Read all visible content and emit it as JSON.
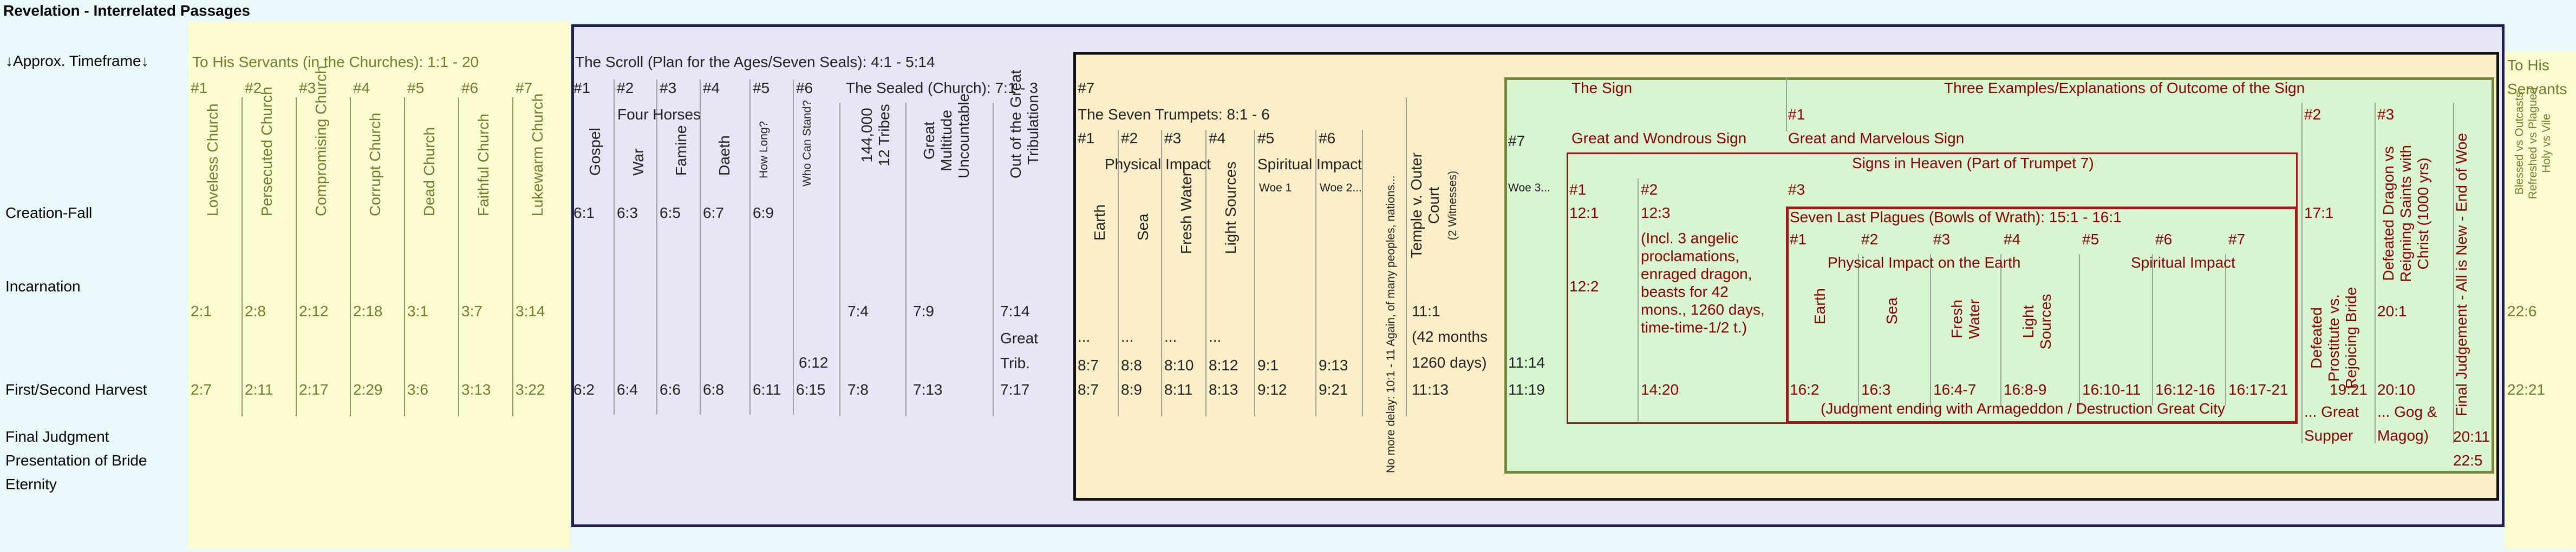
{
  "title": "Revelation - Interrelated Passages",
  "timeframe": {
    "header": "↓Approx. Timeframe↓",
    "rows": [
      "Creation-Fall",
      "Incarnation",
      "First/Second Harvest",
      "Final Judgment",
      "Presentation of Bride",
      "Eternity"
    ]
  },
  "servants": {
    "title": "To His Servants (in the Churches): 1:1 - 20",
    "nums": [
      "#1",
      "#2",
      "#3",
      "#4",
      "#5",
      "#6",
      "#7"
    ],
    "names": [
      "Loveless Church",
      "Persecuted Church",
      "Compromising Church",
      "Corrupt Church",
      "Dead Church",
      "Faithful Church",
      "Lukewarm Church"
    ],
    "inc": [
      "2:1",
      "2:8",
      "2:12",
      "2:18",
      "3:1",
      "3:7",
      "3:14"
    ],
    "harvest": [
      "2:7",
      "2:11",
      "2:17",
      "2:29",
      "3:6",
      "3:13",
      "3:22"
    ]
  },
  "scroll": {
    "title": "The Scroll (Plan for the Ages/Seven Seals): 4:1 - 5:14",
    "nums": [
      "#1",
      "#2",
      "#3",
      "#4",
      "#5",
      "#6"
    ],
    "four_horses": "Four Horses",
    "names": [
      "Gospel",
      "War",
      "Famine",
      "Daeth"
    ],
    "how_long": "How Long?",
    "who_stand": "Who Can Stand?",
    "creation": [
      "6:1",
      "6:3",
      "6:5",
      "6:7",
      "6:9"
    ],
    "harvest": [
      "6:2",
      "6:4",
      "6:6",
      "6:8",
      "6:11",
      "6:15"
    ],
    "who_612": "6:12",
    "sealed": {
      "title": "The Sealed (Church): 7:1 - 3",
      "c1": "144,000",
      "c1b": "12 Tribes",
      "c2": "Great",
      "c2b": "Multitude",
      "c2c": "Uncountable",
      "c3": "Out of the Great",
      "c3b": "Tribulation",
      "inc": [
        "7:4",
        "7:9",
        "7:14"
      ],
      "gt": "Great",
      "gt2": "Trib.",
      "harvest": [
        "7:8",
        "7:13",
        "7:17"
      ]
    }
  },
  "trumpets": {
    "n7": "#7",
    "title": "The Seven Trumpets: 8:1 - 6",
    "nums": [
      "#1",
      "#2",
      "#3",
      "#4",
      "#5",
      "#6"
    ],
    "physical": "Physical Impact",
    "spiritual": "Spiritual Impact",
    "names": [
      "Earth",
      "Sea",
      "Fresh Water",
      "Light Sources"
    ],
    "woe1": "Woe 1",
    "woe2": "Woe 2...",
    "dots": [
      "...",
      "...",
      "...",
      "..."
    ],
    "r3": [
      "8:7",
      "8:8",
      "8:10",
      "8:12",
      "9:1",
      "9:13"
    ],
    "r4": [
      "8:7",
      "8:9",
      "8:11",
      "8:13",
      "9:12",
      "9:21"
    ],
    "nodelay": "No more delay: 10:1 - 11 Again, of many peoples, nations...",
    "temple": [
      "Temple v. Outer",
      "Court",
      "(2 Witnesses)"
    ],
    "t_inc": "11:1",
    "t_42": "(42 months",
    "t_1260": "1260 days)",
    "t_harvest": "11:13"
  },
  "n7b": {
    "n": "#7",
    "woe": "Woe 3...",
    "a": "11:14",
    "b": "11:19"
  },
  "sign": {
    "title": "The Sign",
    "three": "Three Examples/Explanations of Outcome of the Sign",
    "n1": "#1",
    "great_wondrous": "Great and Wondrous Sign",
    "great_marvelous": "Great and Marvelous Sign",
    "heaven": "Signs in Heaven (Part of Trumpet 7)",
    "h1": "#1",
    "h2": "#2",
    "h3": "#3",
    "v121": "12:1",
    "v122": "12:2",
    "v123": "12:3",
    "incl": "(Incl. 3 angelic proclamations, enraged dragon, beasts for 42 mons., 1260 days, time-time-1/2 t.)",
    "v1420": "14:20",
    "plagues": "Seven Last Plagues (Bowls of Wrath): 15:1 - 16:1",
    "pnums": [
      "#1",
      "#2",
      "#3",
      "#4",
      "#5",
      "#6",
      "#7"
    ],
    "pphys": "Physical Impact on the Earth",
    "pspir": "Spiritual Impact",
    "pnames": [
      "Earth",
      "Sea",
      "Fresh Water",
      "Light Sources"
    ],
    "pverses": [
      "16:2",
      "16:3",
      "16:4-7",
      "16:8-9",
      "16:10-11",
      "16:12-16",
      "16:17-21"
    ],
    "judgment": "(Judgment ending with Armageddon / Destruction Great City",
    "n2": "#2",
    "n3": "#3",
    "v171": "17:1",
    "defeated_prost": [
      "Defeated",
      "Prostitute vs.",
      "Rejoicing Bride"
    ],
    "defeated_dragon": [
      "Defeated Dragon vs",
      "Reigning Saints with",
      "Christ (1000 yrs)"
    ],
    "final": "Final Judgement - All is New - End of Woe",
    "v201": "20:1",
    "v1921": "19:21",
    "v2010": "20:10",
    "great_supper": "... Great Supper",
    "gog": "... Gog & Magog)",
    "v2011": "20:11",
    "v225": "22:5"
  },
  "servants_end": {
    "title": "To His Servants",
    "text": [
      "Blessed vs Outcasts",
      "Refreshed vs Plagued",
      "Holy vs Vile"
    ],
    "a": "22:6",
    "b": "22:21"
  },
  "colors": {
    "yellow": "#fdfbd0",
    "blue": "#e6e6f6",
    "green": "#d8f5d2",
    "border_navy": "#1c1f4f",
    "border_green": "#74883a",
    "border_red": "#a01919"
  }
}
